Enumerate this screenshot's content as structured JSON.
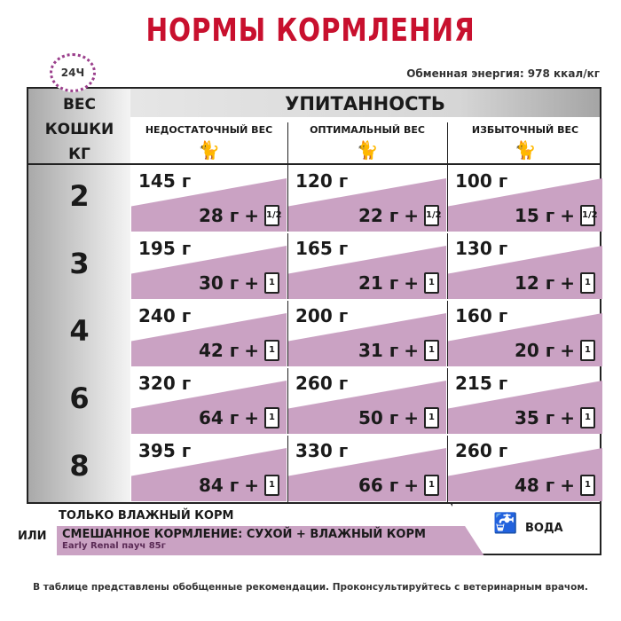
{
  "title": "НОРМЫ КОРМЛЕНИЯ",
  "clock_label": "24Ч",
  "energy": "Обменная энергия: 978 ккал/кг",
  "weight_header": [
    "ВЕС",
    "КОШКИ",
    "КГ"
  ],
  "condition_header": "УПИТАННОСТЬ",
  "columns": [
    "НЕДОСТАТОЧНЫЙ ВЕС",
    "ОПТИМАЛЬНЫЙ ВЕС",
    "ИЗБЫТОЧНЫЙ ВЕС"
  ],
  "rows": [
    {
      "weight": "2",
      "cells": [
        {
          "dry": "145 г",
          "wet": "28 г",
          "pouch": "1/2"
        },
        {
          "dry": "120 г",
          "wet": "22 г",
          "pouch": "1/2"
        },
        {
          "dry": "100 г",
          "wet": "15 г",
          "pouch": "1/2"
        }
      ]
    },
    {
      "weight": "3",
      "cells": [
        {
          "dry": "195 г",
          "wet": "30 г",
          "pouch": "1"
        },
        {
          "dry": "165 г",
          "wet": "21 г",
          "pouch": "1"
        },
        {
          "dry": "130 г",
          "wet": "12 г",
          "pouch": "1"
        }
      ]
    },
    {
      "weight": "4",
      "cells": [
        {
          "dry": "240 г",
          "wet": "42 г",
          "pouch": "1"
        },
        {
          "dry": "200 г",
          "wet": "31 г",
          "pouch": "1"
        },
        {
          "dry": "160 г",
          "wet": "20 г",
          "pouch": "1"
        }
      ]
    },
    {
      "weight": "6",
      "cells": [
        {
          "dry": "320 г",
          "wet": "64 г",
          "pouch": "1"
        },
        {
          "dry": "260 г",
          "wet": "50 г",
          "pouch": "1"
        },
        {
          "dry": "215 г",
          "wet": "35 г",
          "pouch": "1"
        }
      ]
    },
    {
      "weight": "8",
      "cells": [
        {
          "dry": "395 г",
          "wet": "84 г",
          "pouch": "1"
        },
        {
          "dry": "330 г",
          "wet": "66 г",
          "pouch": "1"
        },
        {
          "dry": "260 г",
          "wet": "48 г",
          "pouch": "1"
        }
      ]
    }
  ],
  "plus": "+",
  "legend": {
    "only_wet": "ТОЛЬКО ВЛАЖНЫЙ КОРМ",
    "or": "ИЛИ",
    "mixed": "СМЕШАННОЕ КОРМЛЕНИЕ: СУХОЙ + ВЛАЖНЫЙ КОРМ",
    "product": "Early Renal пауч 85г",
    "water": "ВОДА"
  },
  "note": "В таблице представлены обобщенные рекомендации. Проконсультируйтесь с ветеринарным врачом.",
  "colors": {
    "title": "#c8102e",
    "pink": "#caa2c3"
  }
}
